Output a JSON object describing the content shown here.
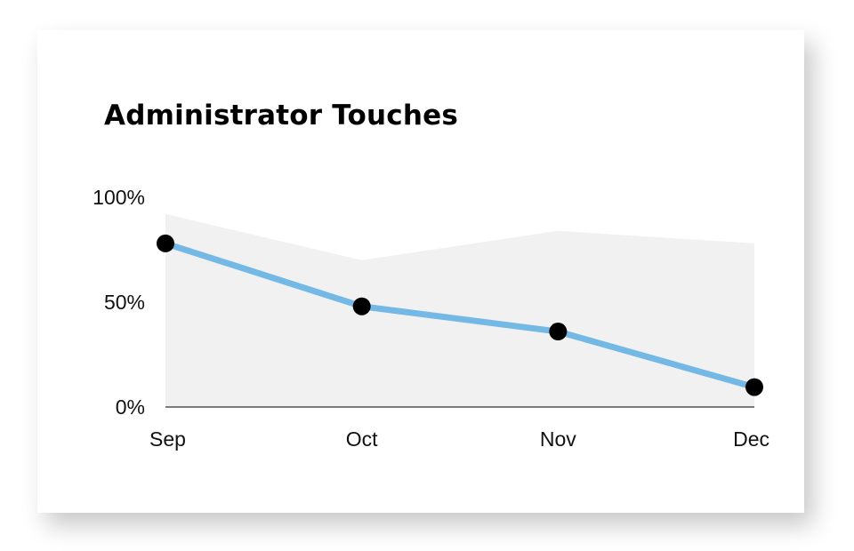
{
  "chart_data": {
    "type": "line",
    "title": "Administrator Touches",
    "xlabel": "",
    "ylabel": "",
    "categories": [
      "Sep",
      "Oct",
      "Nov",
      "Dec"
    ],
    "series": [
      {
        "values": [
          78,
          48,
          36,
          9.5
        ]
      }
    ],
    "background_area": {
      "x": [
        "Sep",
        "Oct",
        "Nov",
        "Dec"
      ],
      "values": [
        92,
        70,
        84,
        78
      ]
    },
    "yticks": [
      0,
      50,
      100
    ],
    "ytick_labels": [
      "0%",
      "50%",
      "100%"
    ],
    "ylim": [
      0,
      100
    ],
    "grid": false,
    "legend": "none",
    "colors": {
      "line": "#74b8e6",
      "marker": "#000000",
      "area": "#f1f1f1",
      "axis": "#000000"
    }
  }
}
